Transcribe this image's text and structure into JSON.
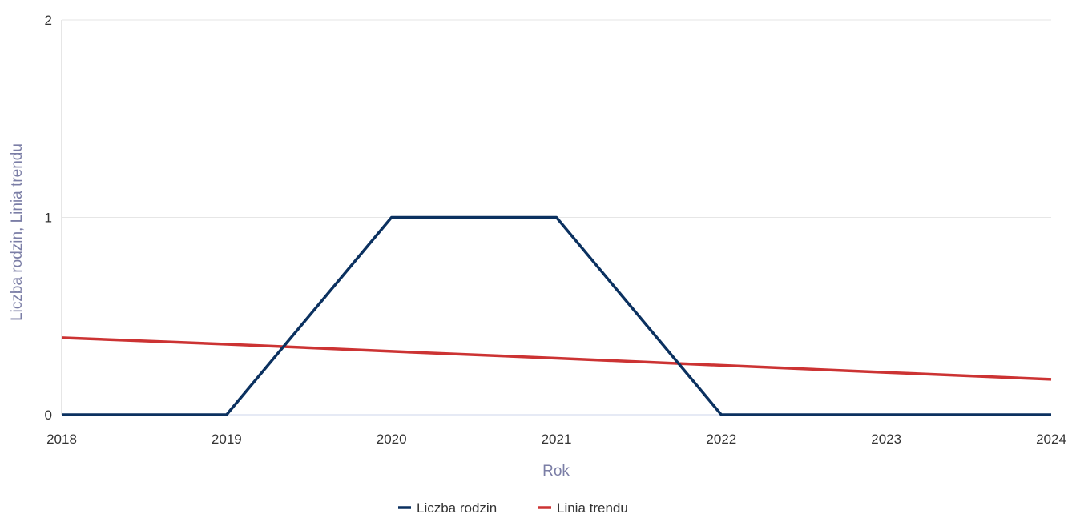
{
  "chart_data": {
    "type": "line",
    "title": "",
    "xlabel": "Rok",
    "ylabel": "Liczba rodzin, Linia trendu",
    "x": [
      2018,
      2019,
      2020,
      2021,
      2022,
      2023,
      2024
    ],
    "x_tick_labels": [
      "2018",
      "2019",
      "2020",
      "2021",
      "2022",
      "2023",
      "2024"
    ],
    "xlim": [
      2018,
      2024
    ],
    "ylim": [
      0,
      2
    ],
    "y_ticks": [
      0,
      1,
      2
    ],
    "y_tick_labels": [
      "0",
      "1",
      "2"
    ],
    "grid": true,
    "legend_position": "bottom-center",
    "series": [
      {
        "name": "Liczba rodzin",
        "color": "#0b3160",
        "values": [
          0,
          0,
          1,
          1,
          0,
          0,
          0
        ]
      },
      {
        "name": "Linia trendu",
        "color": "#cc3333",
        "values": [
          0.39,
          0.357,
          0.321,
          0.286,
          0.25,
          0.214,
          0.179
        ]
      }
    ]
  }
}
